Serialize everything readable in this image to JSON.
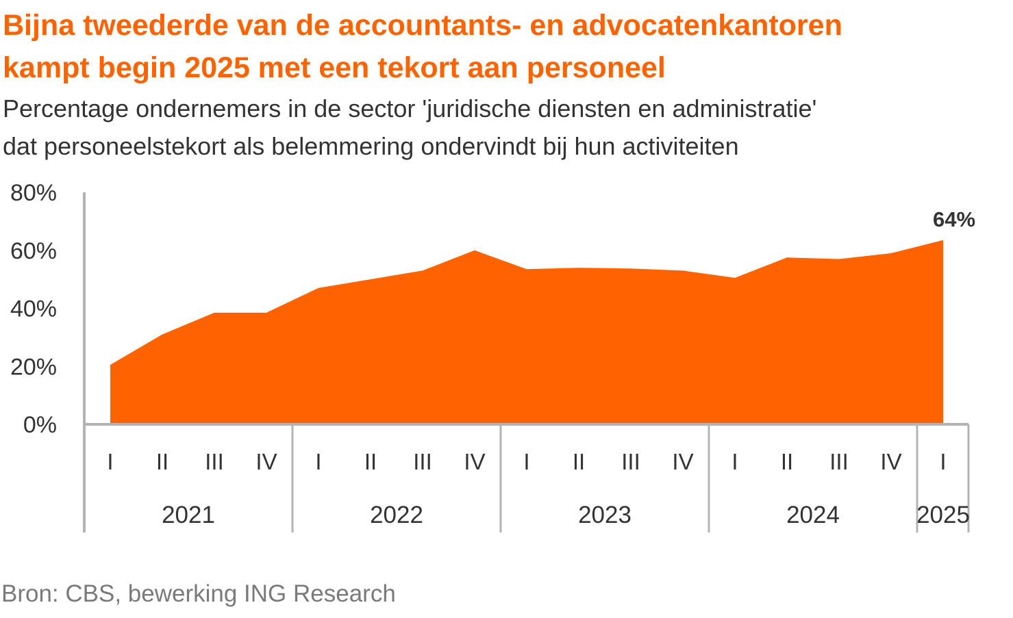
{
  "title_line1": "Bijna tweederde van de accountants- en advocatenkantoren",
  "title_line2": "kampt begin 2025 met een tekort aan personeel",
  "subtitle_line1": "Percentage ondernemers in de sector 'juridische diensten en administratie'",
  "subtitle_line2": "dat personeelstekort als belemmering ondervindt bij hun activiteiten",
  "source": "Bron: CBS, bewerking ING Research",
  "colors": {
    "title": "#ff6200",
    "area": "#ff6200",
    "axis": "#b3b3b3",
    "text": "#333333",
    "source": "#7a7a7a"
  },
  "chart_data": {
    "type": "area",
    "title": "Bijna tweederde van de accountants- en advocatenkantoren kampt begin 2025 met een tekort aan personeel",
    "subtitle": "Percentage ondernemers in de sector 'juridische diensten en administratie' dat personeelstekort als belemmering ondervindt bij hun activiteiten",
    "ylim": [
      0,
      80
    ],
    "yticks": [
      "0%",
      "20%",
      "40%",
      "60%",
      "80%"
    ],
    "ytick_values": [
      0,
      20,
      40,
      60,
      80
    ],
    "quarters": [
      "I",
      "II",
      "III",
      "IV",
      "I",
      "II",
      "III",
      "IV",
      "I",
      "II",
      "III",
      "IV",
      "I",
      "II",
      "III",
      "IV",
      "I"
    ],
    "years": [
      {
        "label": "2021",
        "quarters": 4
      },
      {
        "label": "2022",
        "quarters": 4
      },
      {
        "label": "2023",
        "quarters": 4
      },
      {
        "label": "2024",
        "quarters": 4
      },
      {
        "label": "2025",
        "quarters": 1
      }
    ],
    "values": [
      20.5,
      31,
      38.5,
      38.5,
      47,
      50,
      53,
      60,
      53.5,
      54,
      53.7,
      53,
      50.5,
      57.5,
      57,
      59,
      63.5
    ],
    "last_value_label": "64%",
    "grid": false,
    "legend": "none"
  }
}
